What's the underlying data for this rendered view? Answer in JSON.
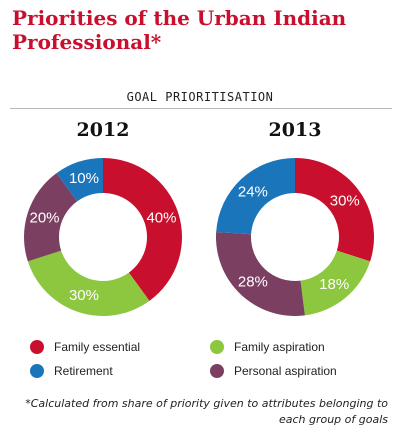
{
  "title": "Priorities of the Urban Indian Professional*",
  "subheading": "GOAL PRIORITISATION",
  "footnote": "*Calculated from share of priority given to attributes belonging to each group of goals",
  "colors": {
    "family_essential": "#c8102e",
    "family_aspiration": "#8dc63f",
    "retirement": "#1b75bb",
    "personal_aspiration": "#7b3f61"
  },
  "legend": [
    {
      "label": "Family essential",
      "color": "#c8102e"
    },
    {
      "label": "Family aspiration",
      "color": "#8dc63f"
    },
    {
      "label": "Retirement",
      "color": "#1b75bb"
    },
    {
      "label": "Personal aspiration",
      "color": "#7b3f61"
    }
  ],
  "chart_data": [
    {
      "type": "pie",
      "title": "2012",
      "donut": true,
      "categories": [
        "Family essential",
        "Family aspiration",
        "Personal aspiration",
        "Retirement"
      ],
      "values": [
        40,
        30,
        20,
        10
      ],
      "labels": [
        "40%",
        "30%",
        "20%",
        "10%"
      ],
      "colors": [
        "#c8102e",
        "#8dc63f",
        "#7b3f61",
        "#1b75bb"
      ]
    },
    {
      "type": "pie",
      "title": "2013",
      "donut": true,
      "categories": [
        "Family essential",
        "Family aspiration",
        "Personal aspiration",
        "Retirement"
      ],
      "values": [
        30,
        18,
        28,
        24
      ],
      "labels": [
        "30%",
        "18%",
        "28%",
        "24%"
      ],
      "colors": [
        "#c8102e",
        "#8dc63f",
        "#7b3f61",
        "#1b75bb"
      ]
    }
  ]
}
